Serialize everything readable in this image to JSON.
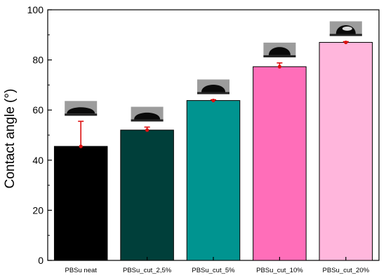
{
  "chart_data": {
    "type": "bar",
    "title": "",
    "xlabel": "",
    "ylabel": "Contact angle (°)",
    "categories": [
      "PBSu neat",
      "PBSu_cut_2,5%",
      "PBSu_cut_5%",
      "PBSu_cut_10%",
      "PBSu_cut_20%"
    ],
    "values": [
      45.5,
      52,
      63.8,
      77.3,
      87
    ],
    "errors": [
      10,
      1.2,
      0.3,
      1.5,
      0.3
    ],
    "colors": [
      "#000000",
      "#003f3a",
      "#009490",
      "#ff6eb9",
      "#ffb6dc"
    ],
    "error_color": "#dd1111",
    "ylim": [
      0,
      100
    ],
    "yticks": [
      0,
      20,
      40,
      60,
      80,
      100
    ],
    "grid": false,
    "droplet_images": true
  }
}
